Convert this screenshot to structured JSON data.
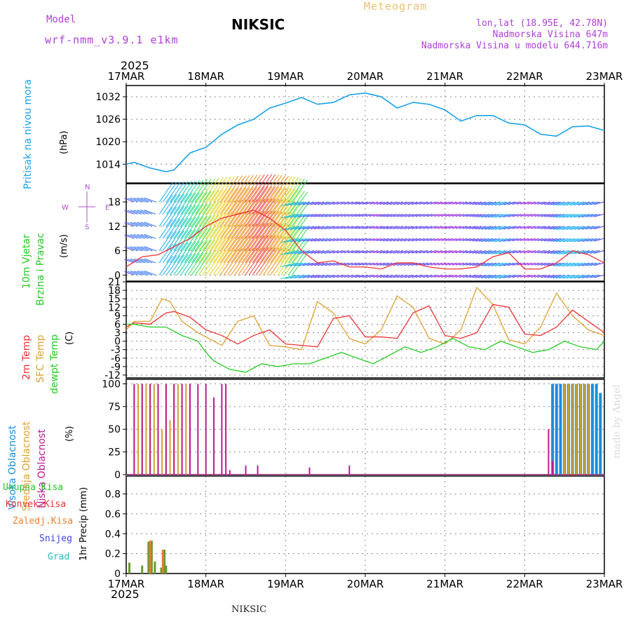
{
  "header": {
    "model_label": "Model",
    "model_name": "wrf-nmm_v3.9.1 e1km",
    "station": "NIKSIC",
    "product": "Meteogram",
    "coords": "lon,lat (18.95E, 42.78N)",
    "elevation": "Nadmorska Visina 647m",
    "model_elevation": "Nadmorska Visina u modelu 644.716m",
    "year": "2025"
  },
  "footer": {
    "year": "2025",
    "station": "NIKSIC"
  },
  "watermark": "made by Angel",
  "colors": {
    "pressure": "#1aa3e8",
    "temp2m": "#ee3333",
    "sfc": "#e0a030",
    "dewpt": "#22cc22",
    "high_cloud": "#1a8fd8",
    "mid_cloud": "#d4a030",
    "low_cloud": "#c01890",
    "ylabel_purple": "#b050d0",
    "header_purple": "#b040d8",
    "header_gold": "#e8c070"
  },
  "panels": {
    "pressure": {
      "label": "Pritisak na nivou mora",
      "unit": "(hPa)"
    },
    "wind": {
      "label_1": "10m Vjetar",
      "label_2": "Brzina i Pravac",
      "unit": "(m/s)",
      "compass": {
        "n": "N",
        "s": "S",
        "e": "E",
        "w": "W"
      }
    },
    "temp": {
      "label_1": "2m Temp",
      "label_2": "SFC Temp",
      "label_3": "dewpt Temp",
      "unit": "(C)"
    },
    "cloud": {
      "label_1": "Visoka Oblacnost",
      "label_2": "Srednja Oblacnost",
      "label_3": "Niska Oblacnost",
      "unit": "(%)"
    },
    "precip": {
      "labels": [
        "Ukupna Kisa",
        "Konvek.Kisa",
        "Zaledj.Kisa",
        "Snijeg",
        "Grad"
      ],
      "unit": "1hr Precip (mm)"
    }
  },
  "chart_data": [
    {
      "type": "line",
      "title": "Pritisak na nivou mora",
      "ylabel": "(hPa)",
      "xlabel": "",
      "x_ticks": [
        "17MAR",
        "18MAR",
        "19MAR",
        "20MAR",
        "21MAR",
        "22MAR",
        "23MAR"
      ],
      "y_ticks": [
        1014,
        1020,
        1026,
        1032
      ],
      "ylim": [
        1009,
        1035
      ],
      "grid": true,
      "series": [
        {
          "x": [
            0,
            0.1,
            0.3,
            0.5,
            0.6,
            0.8,
            0.9,
            1.0,
            1.2,
            1.4,
            1.6,
            1.8,
            2.0,
            2.2,
            2.4,
            2.6,
            2.8,
            3.0,
            3.2,
            3.4,
            3.6,
            3.8,
            4.0,
            4.2,
            4.4,
            4.6,
            4.8,
            5.0,
            5.2,
            5.4,
            5.6,
            5.8,
            6.0
          ],
          "y": [
            1014,
            1014.5,
            1013,
            1012,
            1012.5,
            1017,
            1017.8,
            1018.5,
            1022,
            1024.5,
            1026,
            1029,
            1030.3,
            1031.8,
            1030,
            1030.5,
            1032.5,
            1033,
            1032,
            1029,
            1030.5,
            1030,
            1028.5,
            1025.5,
            1027,
            1027,
            1025,
            1024.5,
            1022,
            1021.5,
            1024,
            1024.2,
            1023
          ]
        }
      ]
    },
    {
      "type": "line",
      "title": "10m Vjetar Brzina i Pravac",
      "ylabel": "(m/s)",
      "xlabel": "",
      "x_ticks": [
        "17MAR",
        "18MAR",
        "19MAR",
        "20MAR",
        "21MAR",
        "22MAR",
        "23MAR"
      ],
      "y_ticks": [
        0,
        6,
        12,
        18
      ],
      "ylim": [
        -1.5,
        22.5
      ],
      "grid": true,
      "series": [
        {
          "name": "Brzina",
          "x": [
            0,
            0.2,
            0.4,
            0.6,
            0.8,
            1.0,
            1.2,
            1.4,
            1.6,
            1.8,
            2.0,
            2.2,
            2.4,
            2.6,
            2.8,
            3.0,
            3.2,
            3.4,
            3.6,
            3.8,
            4.0,
            4.2,
            4.4,
            4.6,
            4.8,
            5.0,
            5.2,
            5.4,
            5.6,
            5.8,
            6.0
          ],
          "y": [
            2,
            4.5,
            5,
            7,
            9,
            12,
            14,
            15,
            16,
            14,
            11,
            6,
            3,
            3.5,
            2,
            2,
            1.5,
            3,
            3,
            2,
            1.5,
            1.5,
            2,
            4.5,
            5.5,
            1.5,
            1.5,
            3,
            6,
            5,
            3
          ]
        }
      ]
    },
    {
      "type": "line",
      "title": "2m Temp / SFC Temp / dewpt Temp",
      "ylabel": "(C)",
      "xlabel": "",
      "x_ticks": [
        "17MAR",
        "18MAR",
        "19MAR",
        "20MAR",
        "21MAR",
        "22MAR",
        "23MAR"
      ],
      "y_ticks": [
        -12,
        -9,
        -6,
        -3,
        0,
        3,
        6,
        9,
        12,
        15,
        18,
        21
      ],
      "ylim": [
        -13,
        21
      ],
      "grid": true,
      "series": [
        {
          "name": "2m Temp",
          "x": [
            0,
            0.1,
            0.3,
            0.5,
            0.6,
            0.8,
            1.0,
            1.2,
            1.4,
            1.6,
            1.8,
            2.0,
            2.2,
            2.4,
            2.6,
            2.8,
            3.0,
            3.2,
            3.4,
            3.6,
            3.8,
            4.0,
            4.2,
            4.4,
            4.6,
            4.8,
            5.0,
            5.2,
            5.4,
            5.6,
            5.8,
            6.0
          ],
          "y": [
            5,
            6.5,
            6,
            10,
            10.5,
            8.5,
            4,
            2,
            -1,
            2,
            4,
            -1,
            -1.5,
            -2,
            8,
            9,
            1.5,
            1.5,
            1,
            10,
            12.5,
            2,
            1,
            3,
            13,
            12,
            2.5,
            2,
            5,
            11,
            7,
            3
          ]
        },
        {
          "name": "SFC Temp",
          "x": [
            0,
            0.1,
            0.3,
            0.45,
            0.55,
            0.7,
            0.9,
            1.0,
            1.2,
            1.4,
            1.6,
            1.8,
            2.0,
            2.2,
            2.4,
            2.6,
            2.8,
            3.0,
            3.2,
            3.4,
            3.6,
            3.8,
            4.0,
            4.2,
            4.4,
            4.6,
            4.8,
            5.0,
            5.2,
            5.4,
            5.6,
            5.8,
            6.0
          ],
          "y": [
            4,
            7,
            7,
            15,
            14,
            7,
            3,
            1.5,
            -1.5,
            7,
            9,
            -1.5,
            -2,
            -3,
            14,
            10,
            1,
            -1,
            4,
            16,
            12,
            1,
            -1,
            4,
            19,
            13,
            0.5,
            -1,
            5,
            17,
            9,
            4,
            2
          ]
        },
        {
          "name": "dewpt Temp",
          "x": [
            0,
            0.1,
            0.3,
            0.5,
            0.7,
            0.9,
            1.0,
            1.1,
            1.3,
            1.5,
            1.7,
            1.9,
            2.1,
            2.3,
            2.5,
            2.7,
            2.9,
            3.1,
            3.3,
            3.5,
            3.7,
            3.9,
            4.1,
            4.3,
            4.5,
            4.7,
            4.9,
            5.1,
            5.3,
            5.5,
            5.7,
            5.9,
            6.0
          ],
          "y": [
            6,
            6,
            5,
            5,
            2,
            0,
            -4,
            -7,
            -10,
            -11,
            -8,
            -9,
            -8,
            -8,
            -6,
            -4,
            -6,
            -8,
            -5,
            -2,
            -4,
            -2,
            1,
            -2,
            -3,
            0,
            -2,
            -4,
            -3,
            0,
            -2,
            -3,
            0
          ]
        }
      ]
    },
    {
      "type": "bar",
      "title": "Visoka / Srednja / Niska Oblacnost",
      "ylabel": "(%)",
      "xlabel": "",
      "x_ticks": [
        "17MAR",
        "18MAR",
        "19MAR",
        "20MAR",
        "21MAR",
        "22MAR",
        "23MAR"
      ],
      "y_ticks": [
        0,
        25,
        50,
        75,
        100
      ],
      "ylim": [
        0,
        105
      ],
      "grid": true,
      "series": [
        {
          "name": "Visoka Oblacnost",
          "x": [
            5.35,
            5.4,
            5.45,
            5.5,
            5.55,
            5.6,
            5.65,
            5.7,
            5.75,
            5.8,
            5.85,
            5.9,
            5.95
          ],
          "y": [
            100,
            100,
            100,
            100,
            100,
            100,
            100,
            100,
            100,
            100,
            100,
            100,
            90
          ]
        },
        {
          "name": "Srednja Oblacnost",
          "x": [
            0.1,
            0.15,
            0.2,
            0.25,
            0.3,
            0.35,
            0.4,
            0.45,
            0.5,
            0.55,
            0.6,
            0.65,
            0.7,
            0.75,
            0.8,
            5.5,
            5.55,
            5.6,
            5.65,
            5.7,
            5.75,
            5.8
          ],
          "y": [
            100,
            100,
            100,
            100,
            100,
            100,
            100,
            50,
            100,
            60,
            100,
            100,
            100,
            100,
            100,
            100,
            100,
            100,
            100,
            100,
            100,
            100
          ]
        },
        {
          "name": "Niska Oblacnost",
          "x": [
            0.1,
            0.2,
            0.3,
            0.4,
            0.5,
            0.6,
            0.7,
            0.8,
            0.9,
            1.0,
            1.1,
            1.2,
            1.25,
            1.3,
            1.5,
            1.65,
            2.3,
            2.8,
            5.3,
            5.35
          ],
          "y": [
            100,
            100,
            100,
            100,
            100,
            100,
            100,
            100,
            100,
            100,
            85,
            100,
            100,
            5,
            10,
            10,
            8,
            10,
            50,
            15
          ]
        }
      ]
    },
    {
      "type": "bar",
      "title": "1hr Precip",
      "ylabel": "1hr Precip (mm)",
      "xlabel": "",
      "x_ticks": [
        "17MAR",
        "18MAR",
        "19MAR",
        "20MAR",
        "21MAR",
        "22MAR",
        "23MAR"
      ],
      "y_ticks": [
        0,
        0.2,
        0.4,
        0.6,
        0.8
      ],
      "ylim": [
        0,
        0.98
      ],
      "grid": true,
      "series": [
        {
          "name": "Ukupna Kisa",
          "x": [
            0.04,
            0.2,
            0.28,
            0.32,
            0.36,
            0.44,
            0.48,
            0.5
          ],
          "y": [
            0.11,
            0.08,
            0.32,
            0.33,
            0.12,
            0.06,
            0.24,
            0.08
          ]
        },
        {
          "name": "Zaledj.Kisa",
          "x": [
            0.3,
            0.46
          ],
          "y": [
            0.33,
            0.24
          ]
        }
      ]
    }
  ]
}
